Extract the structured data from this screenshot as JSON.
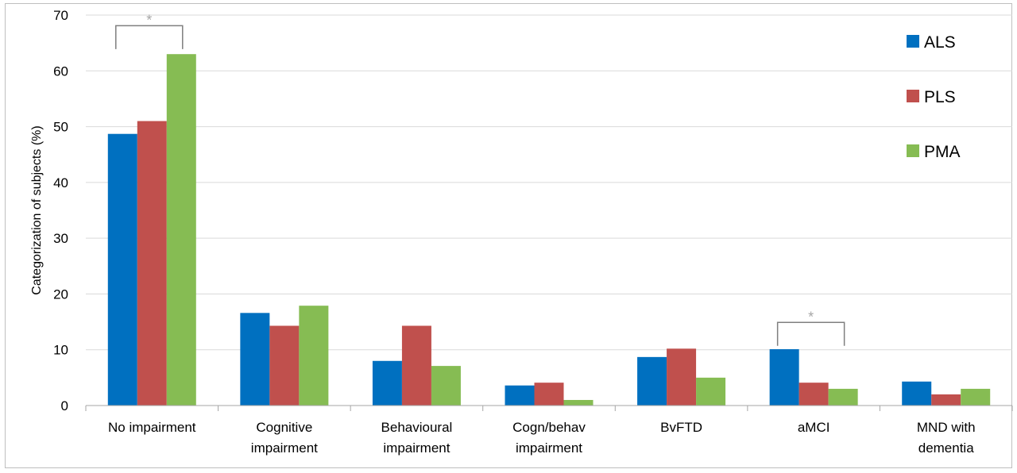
{
  "chart_data": {
    "type": "bar",
    "title": "",
    "xlabel": "",
    "ylabel": "Categorization of subjects (%)",
    "ylim": [
      0,
      70
    ],
    "yticks": [
      0,
      10,
      20,
      30,
      40,
      50,
      60,
      70
    ],
    "grid": true,
    "legend_position": "top-right",
    "categories": [
      [
        "No impairment"
      ],
      [
        "Cognitive",
        "impairment"
      ],
      [
        "Behavioural",
        "impairment"
      ],
      [
        "Cogn/behav",
        "impairment"
      ],
      [
        "BvFTD"
      ],
      [
        "aMCI"
      ],
      [
        "MND with",
        "dementia"
      ]
    ],
    "series": [
      {
        "name": "ALS",
        "color": "#0070c0",
        "values": [
          48.7,
          16.6,
          8.0,
          3.6,
          8.7,
          10.1,
          4.3
        ]
      },
      {
        "name": "PLS",
        "color": "#c0504d",
        "values": [
          51.0,
          14.3,
          14.3,
          4.1,
          10.2,
          4.1,
          2.0
        ]
      },
      {
        "name": "PMA",
        "color": "#86bc53",
        "values": [
          63.0,
          17.9,
          7.1,
          1.0,
          5.0,
          3.0,
          3.0
        ]
      }
    ],
    "annotations": [
      {
        "category_index": 0,
        "text": "*",
        "color": "#a6a6a6",
        "from_series": 0,
        "to_series": 2,
        "bracket_y": 68.1,
        "tick_bottom": 63.9
      },
      {
        "category_index": 5,
        "text": "*",
        "color": "#a6a6a6",
        "from_series": 0,
        "to_series": 2,
        "bracket_y": 14.9,
        "tick_bottom": 10.7
      }
    ]
  }
}
